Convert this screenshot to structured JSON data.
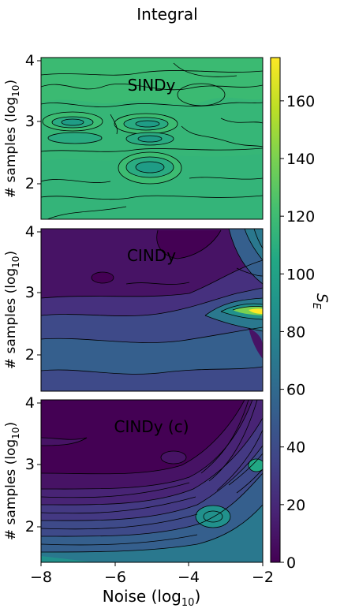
{
  "figure": {
    "title": "Integral",
    "xlabel_main": "Noise (log",
    "xlabel_sub": "10",
    "xlabel_tail": ")",
    "ylabel_main": "# samples (log",
    "ylabel_sub": "10",
    "ylabel_tail": ")",
    "colorbar_label": "S",
    "colorbar_label_sub": "E"
  },
  "colors": {
    "colormap": "viridis",
    "contour_lines": "#000000"
  },
  "chart_data": [
    {
      "type": "heatmap",
      "title": "SINDy",
      "xlim": [
        -8,
        -2
      ],
      "ylim": [
        1.5,
        4
      ],
      "xticks": [],
      "yticks": [
        2,
        3,
        4
      ],
      "ytick_labels": [
        "2",
        "3",
        "4"
      ],
      "colorbar_range": [
        0,
        175
      ],
      "description_of_values": "Nearly uniform S_E around 120-130 with contour islands of higher values near noise -7 and -5 at samples ~2.9, and ~2.3 at noise -5",
      "base_value": 125,
      "features": [
        {
          "x": -7.0,
          "y": 2.95,
          "value": 140
        },
        {
          "x": -5.0,
          "y": 2.92,
          "value": 142
        },
        {
          "x": -5.0,
          "y": 2.72,
          "value": 138
        },
        {
          "x": -7.0,
          "y": 2.72,
          "value": 136
        },
        {
          "x": -5.1,
          "y": 2.3,
          "value": 140
        },
        {
          "x": -4.2,
          "y": 3.3,
          "value": 118
        }
      ]
    },
    {
      "type": "heatmap",
      "title": "CINDy",
      "xlim": [
        -8,
        -2
      ],
      "ylim": [
        1.5,
        4
      ],
      "xticks": [],
      "yticks": [
        2,
        3,
        4
      ],
      "ytick_labels": [
        "2",
        "3",
        "4"
      ],
      "colorbar_range": [
        0,
        175
      ],
      "description_of_values": "Low S_E (~10-20) across most of the domain at high samples, rising to ~40-60 at low samples, with a hot ridge up to ~170 near noise -2 at samples ~2.7",
      "features": [
        {
          "x": -2.0,
          "y": 2.7,
          "value": 170
        },
        {
          "x": -2.6,
          "y": 2.7,
          "value": 110
        },
        {
          "x": -2.3,
          "y": 3.5,
          "value": 80
        },
        {
          "x": -7.5,
          "y": 1.8,
          "value": 50
        },
        {
          "x": -5.0,
          "y": 3.5,
          "value": 10
        }
      ]
    },
    {
      "type": "heatmap",
      "title": "CINDy (c)",
      "xlim": [
        -8,
        -2
      ],
      "ylim": [
        1.5,
        4
      ],
      "xticks": [
        -8,
        -6,
        -4,
        -2
      ],
      "xtick_labels": [
        "−8",
        "−6",
        "−4",
        "−2"
      ],
      "yticks": [
        2,
        3,
        4
      ],
      "ytick_labels": [
        "2",
        "3",
        "4"
      ],
      "colorbar_range": [
        0,
        175
      ],
      "description_of_values": "Very low S_E (~5) at high samples; increases to ~70 at low samples and toward high noise",
      "features": [
        {
          "x": -8.0,
          "y": 1.55,
          "value": 70
        },
        {
          "x": -2.0,
          "y": 3.5,
          "value": 80
        },
        {
          "x": -3.0,
          "y": 2.3,
          "value": 60
        },
        {
          "x": -6.0,
          "y": 3.4,
          "value": 5
        }
      ]
    }
  ],
  "colorbar": {
    "ticks": [
      0,
      20,
      40,
      60,
      80,
      100,
      120,
      140,
      160
    ],
    "tick_labels": [
      "0",
      "20",
      "40",
      "60",
      "80",
      "100",
      "120",
      "140",
      "160"
    ],
    "range": [
      0,
      175
    ]
  }
}
